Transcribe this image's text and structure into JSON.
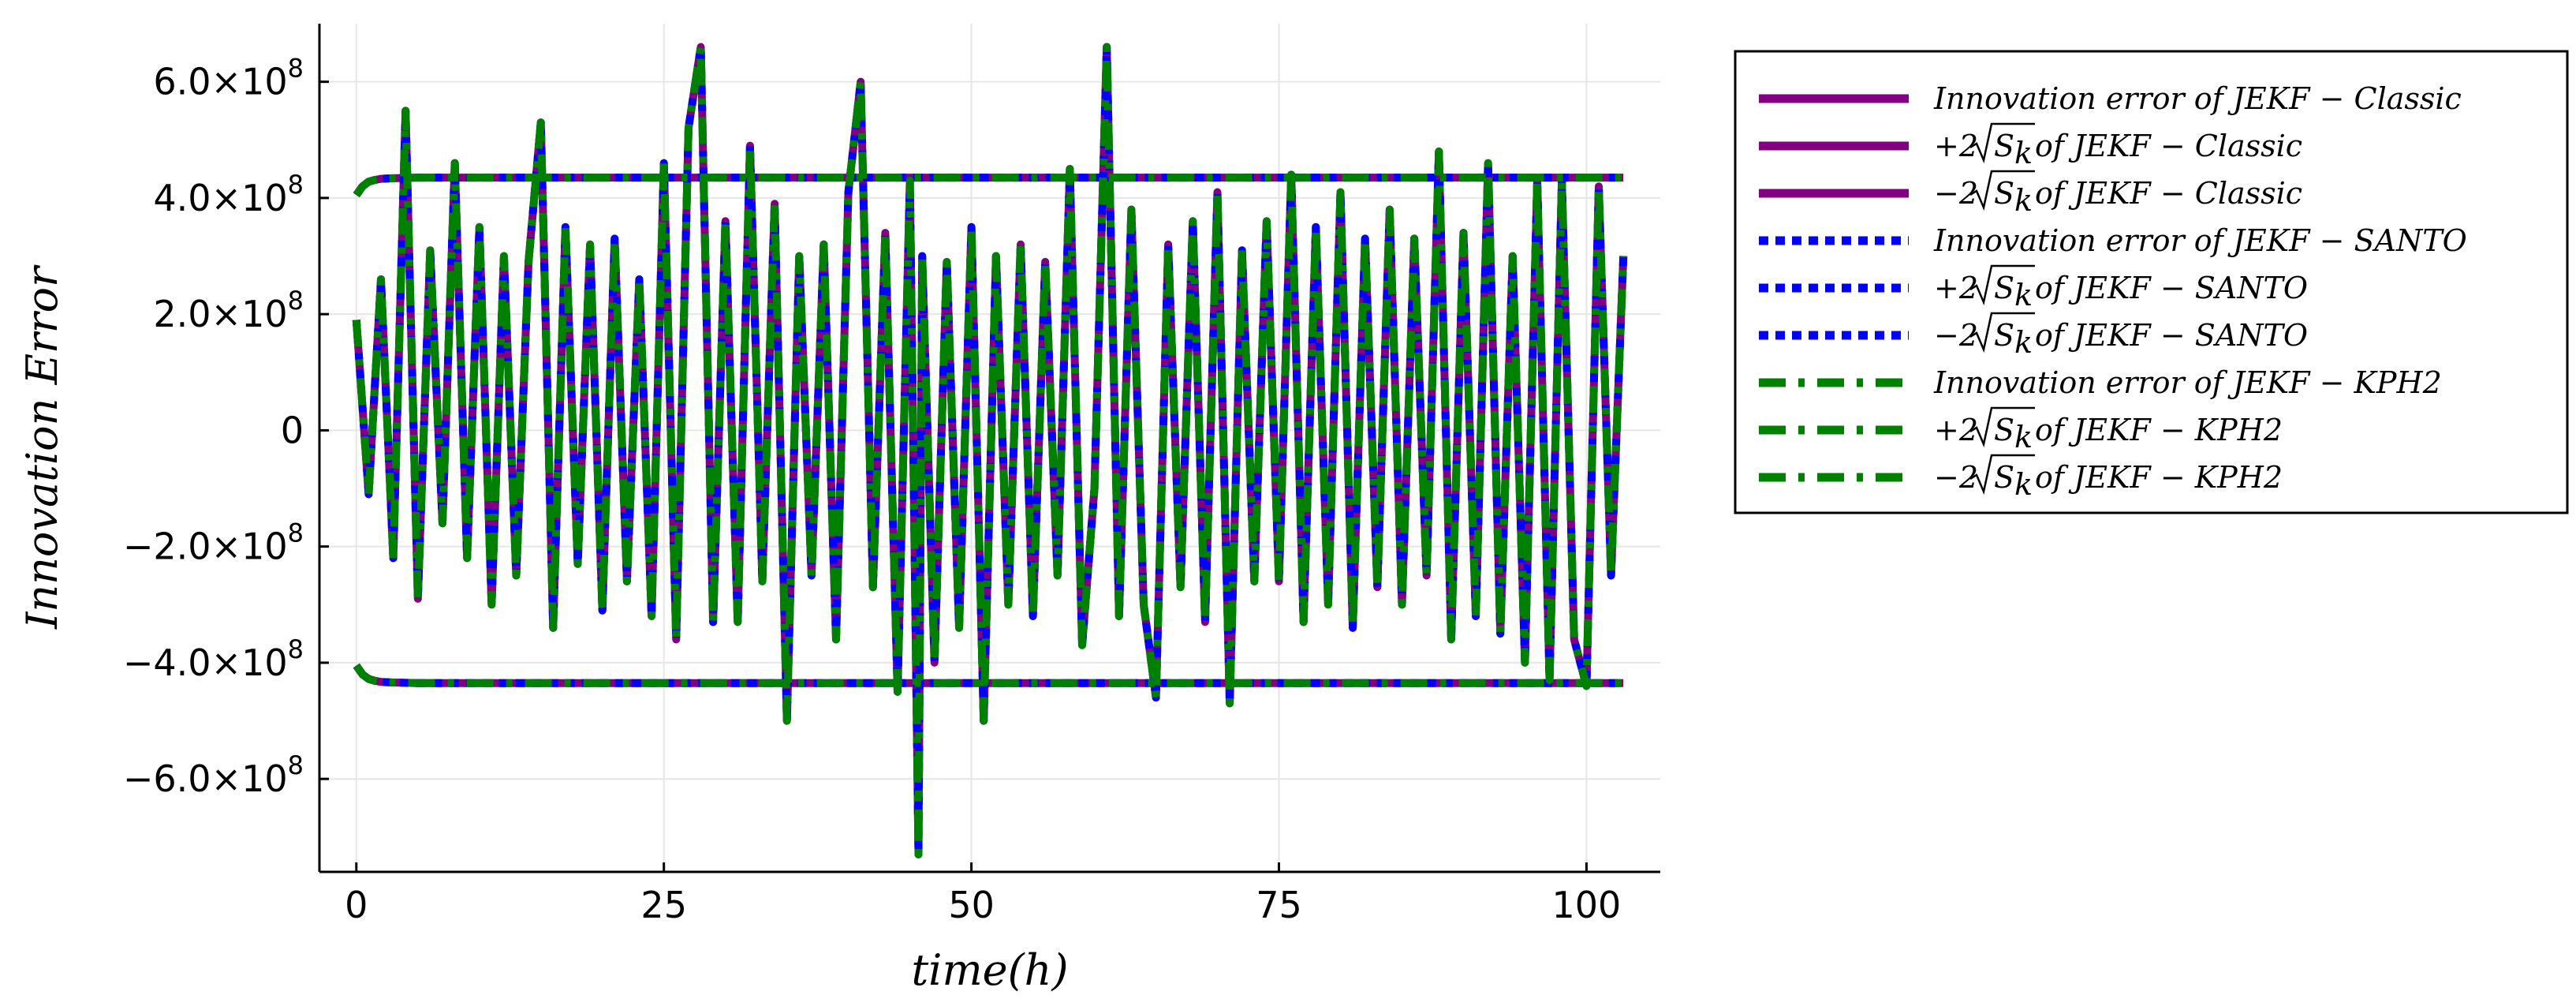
{
  "chart_data": {
    "type": "line",
    "xlabel": "time(h)",
    "ylabel": "Innovation Error",
    "xlim": [
      -3,
      106
    ],
    "ylim": [
      -760000000.0,
      700000000.0
    ],
    "xticks": [
      0,
      25,
      50,
      75,
      100
    ],
    "xtick_labels": [
      "0",
      "25",
      "50",
      "75",
      "100"
    ],
    "yticks": [
      600000000.0,
      400000000.0,
      200000000.0,
      0,
      -200000000.0,
      -400000000.0,
      -600000000.0
    ],
    "ytick_labels": [
      {
        "mantissa": "6.0×10",
        "exp": "8"
      },
      {
        "mantissa": "4.0×10",
        "exp": "8"
      },
      {
        "mantissa": "2.0×10",
        "exp": "8"
      },
      {
        "mantissa": "0",
        "exp": ""
      },
      {
        "mantissa": "−2.0×10",
        "exp": "8"
      },
      {
        "mantissa": "−4.0×10",
        "exp": "8"
      },
      {
        "mantissa": "−6.0×10",
        "exp": "8"
      }
    ],
    "grid": true,
    "legend_position": "outside-right",
    "colors": {
      "classic": "#800080",
      "santo": "#0000ff",
      "kph2": "#008000"
    },
    "series": [
      {
        "name": "Innovation error of JEKF − Classic",
        "color": "#800080",
        "style": "solid",
        "x": [
          0,
          1,
          2,
          3,
          4,
          5,
          6,
          7,
          8,
          9,
          10,
          11,
          12,
          13,
          14,
          15,
          16,
          17,
          18,
          19,
          20,
          21,
          22,
          23,
          24,
          25,
          26,
          27,
          28,
          29,
          30,
          31,
          32,
          33,
          34,
          35,
          36,
          37,
          38,
          39,
          40,
          41,
          42,
          43,
          44,
          45,
          45.7,
          46,
          47,
          48,
          49,
          50,
          51,
          52,
          53,
          54,
          55,
          56,
          57,
          58,
          59,
          60,
          61,
          62,
          63,
          64,
          65,
          66,
          67,
          68,
          69,
          70,
          71,
          72,
          73,
          74,
          75,
          76,
          77,
          78,
          79,
          80,
          81,
          82,
          83,
          84,
          85,
          86,
          87,
          88,
          89,
          90,
          91,
          92,
          93,
          94,
          95,
          96,
          97,
          98,
          99,
          100,
          101,
          102,
          103
        ],
        "y": [
          190000000.0,
          -110000000.0,
          260000000.0,
          -220000000.0,
          550000000.0,
          -290000000.0,
          310000000.0,
          -160000000.0,
          460000000.0,
          -220000000.0,
          350000000.0,
          -300000000.0,
          300000000.0,
          -250000000.0,
          290000000.0,
          530000000.0,
          -340000000.0,
          350000000.0,
          -230000000.0,
          320000000.0,
          -310000000.0,
          330000000.0,
          -260000000.0,
          260000000.0,
          -320000000.0,
          460000000.0,
          -360000000.0,
          520000000.0,
          660000000.0,
          -330000000.0,
          360000000.0,
          -330000000.0,
          490000000.0,
          -260000000.0,
          390000000.0,
          -500000000.0,
          300000000.0,
          -250000000.0,
          320000000.0,
          -360000000.0,
          410000000.0,
          600000000.0,
          -270000000.0,
          340000000.0,
          -450000000.0,
          430000000.0,
          -730000000.0,
          300000000.0,
          -400000000.0,
          290000000.0,
          -340000000.0,
          350000000.0,
          -500000000.0,
          300000000.0,
          -300000000.0,
          320000000.0,
          -320000000.0,
          290000000.0,
          -250000000.0,
          450000000.0,
          -370000000.0,
          -100000000.0,
          660000000.0,
          -320000000.0,
          380000000.0,
          -300000000.0,
          -460000000.0,
          320000000.0,
          -270000000.0,
          360000000.0,
          -330000000.0,
          410000000.0,
          -470000000.0,
          310000000.0,
          -260000000.0,
          360000000.0,
          -260000000.0,
          440000000.0,
          -330000000.0,
          350000000.0,
          -300000000.0,
          410000000.0,
          -340000000.0,
          330000000.0,
          -270000000.0,
          380000000.0,
          -300000000.0,
          330000000.0,
          -250000000.0,
          480000000.0,
          -360000000.0,
          340000000.0,
          -320000000.0,
          460000000.0,
          -350000000.0,
          300000000.0,
          -400000000.0,
          430000000.0,
          -430000000.0,
          430000000.0,
          -360000000.0,
          -440000000.0,
          420000000.0,
          -250000000.0,
          300000000.0
        ]
      },
      {
        "name": "+2√S_k of JEKF − Classic",
        "color": "#800080",
        "style": "solid",
        "x": [
          0,
          0.5,
          1,
          1.5,
          2,
          3,
          5,
          10,
          103
        ],
        "y": [
          405000000.0,
          420000000.0,
          428000000.0,
          431000000.0,
          433000000.0,
          434000000.0,
          435000000.0,
          435000000.0,
          435000000.0
        ]
      },
      {
        "name": "−2√S_k of JEKF − Classic",
        "color": "#800080",
        "style": "solid",
        "x": [
          0,
          0.5,
          1,
          1.5,
          2,
          3,
          5,
          10,
          103
        ],
        "y": [
          -405000000.0,
          -420000000.0,
          -428000000.0,
          -431000000.0,
          -433000000.0,
          -434000000.0,
          -435000000.0,
          -435000000.0,
          -435000000.0
        ]
      },
      {
        "name": "Innovation error of JEKF − SANTO",
        "color": "#0000ff",
        "style": "dotted",
        "x": [
          0,
          1,
          2,
          3,
          4,
          5,
          6,
          7,
          8,
          9,
          10,
          11,
          12,
          13,
          14,
          15,
          16,
          17,
          18,
          19,
          20,
          21,
          22,
          23,
          24,
          25,
          26,
          27,
          28,
          29,
          30,
          31,
          32,
          33,
          34,
          35,
          36,
          37,
          38,
          39,
          40,
          41,
          42,
          43,
          44,
          45,
          45.7,
          46,
          47,
          48,
          49,
          50,
          51,
          52,
          53,
          54,
          55,
          56,
          57,
          58,
          59,
          60,
          61,
          62,
          63,
          64,
          65,
          66,
          67,
          68,
          69,
          70,
          71,
          72,
          73,
          74,
          75,
          76,
          77,
          78,
          79,
          80,
          81,
          82,
          83,
          84,
          85,
          86,
          87,
          88,
          89,
          90,
          91,
          92,
          93,
          94,
          95,
          96,
          97,
          98,
          99,
          100,
          101,
          102,
          103
        ],
        "y": [
          190000000.0,
          -110000000.0,
          260000000.0,
          -220000000.0,
          550000000.0,
          -290000000.0,
          310000000.0,
          -160000000.0,
          460000000.0,
          -220000000.0,
          350000000.0,
          -300000000.0,
          300000000.0,
          -250000000.0,
          290000000.0,
          530000000.0,
          -340000000.0,
          350000000.0,
          -230000000.0,
          320000000.0,
          -310000000.0,
          330000000.0,
          -260000000.0,
          260000000.0,
          -320000000.0,
          460000000.0,
          -360000000.0,
          520000000.0,
          660000000.0,
          -330000000.0,
          360000000.0,
          -330000000.0,
          490000000.0,
          -260000000.0,
          390000000.0,
          -500000000.0,
          300000000.0,
          -250000000.0,
          320000000.0,
          -360000000.0,
          410000000.0,
          600000000.0,
          -270000000.0,
          340000000.0,
          -450000000.0,
          430000000.0,
          -730000000.0,
          300000000.0,
          -400000000.0,
          290000000.0,
          -340000000.0,
          350000000.0,
          -500000000.0,
          300000000.0,
          -300000000.0,
          320000000.0,
          -320000000.0,
          290000000.0,
          -250000000.0,
          450000000.0,
          -370000000.0,
          -100000000.0,
          660000000.0,
          -320000000.0,
          380000000.0,
          -300000000.0,
          -460000000.0,
          320000000.0,
          -270000000.0,
          360000000.0,
          -330000000.0,
          410000000.0,
          -470000000.0,
          310000000.0,
          -260000000.0,
          360000000.0,
          -260000000.0,
          440000000.0,
          -330000000.0,
          350000000.0,
          -300000000.0,
          410000000.0,
          -340000000.0,
          330000000.0,
          -270000000.0,
          380000000.0,
          -300000000.0,
          330000000.0,
          -250000000.0,
          480000000.0,
          -360000000.0,
          340000000.0,
          -320000000.0,
          460000000.0,
          -350000000.0,
          300000000.0,
          -400000000.0,
          430000000.0,
          -430000000.0,
          430000000.0,
          -360000000.0,
          -440000000.0,
          420000000.0,
          -250000000.0,
          300000000.0
        ]
      },
      {
        "name": "+2√S_k of JEKF − SANTO",
        "color": "#0000ff",
        "style": "dotted",
        "x": [
          0,
          0.5,
          1,
          1.5,
          2,
          3,
          5,
          10,
          103
        ],
        "y": [
          405000000.0,
          420000000.0,
          428000000.0,
          431000000.0,
          433000000.0,
          434000000.0,
          435000000.0,
          435000000.0,
          435000000.0
        ]
      },
      {
        "name": "−2√S_k of JEKF − SANTO",
        "color": "#0000ff",
        "style": "dotted",
        "x": [
          0,
          0.5,
          1,
          1.5,
          2,
          3,
          5,
          10,
          103
        ],
        "y": [
          -405000000.0,
          -420000000.0,
          -428000000.0,
          -431000000.0,
          -433000000.0,
          -434000000.0,
          -435000000.0,
          -435000000.0,
          -435000000.0
        ]
      },
      {
        "name": "Innovation error of JEKF − KPH2",
        "color": "#008000",
        "style": "dashdot",
        "x": [
          0,
          1,
          2,
          3,
          4,
          5,
          6,
          7,
          8,
          9,
          10,
          11,
          12,
          13,
          14,
          15,
          16,
          17,
          18,
          19,
          20,
          21,
          22,
          23,
          24,
          25,
          26,
          27,
          28,
          29,
          30,
          31,
          32,
          33,
          34,
          35,
          36,
          37,
          38,
          39,
          40,
          41,
          42,
          43,
          44,
          45,
          45.7,
          46,
          47,
          48,
          49,
          50,
          51,
          52,
          53,
          54,
          55,
          56,
          57,
          58,
          59,
          60,
          61,
          62,
          63,
          64,
          65,
          66,
          67,
          68,
          69,
          70,
          71,
          72,
          73,
          74,
          75,
          76,
          77,
          78,
          79,
          80,
          81,
          82,
          83,
          84,
          85,
          86,
          87,
          88,
          89,
          90,
          91,
          92,
          93,
          94,
          95,
          96,
          97,
          98,
          99,
          100,
          101,
          102,
          103
        ],
        "y": [
          190000000.0,
          -110000000.0,
          260000000.0,
          -220000000.0,
          550000000.0,
          -290000000.0,
          310000000.0,
          -160000000.0,
          460000000.0,
          -220000000.0,
          350000000.0,
          -300000000.0,
          300000000.0,
          -250000000.0,
          290000000.0,
          530000000.0,
          -340000000.0,
          350000000.0,
          -230000000.0,
          320000000.0,
          -310000000.0,
          330000000.0,
          -260000000.0,
          260000000.0,
          -320000000.0,
          460000000.0,
          -360000000.0,
          520000000.0,
          660000000.0,
          -330000000.0,
          360000000.0,
          -330000000.0,
          490000000.0,
          -260000000.0,
          390000000.0,
          -500000000.0,
          300000000.0,
          -250000000.0,
          320000000.0,
          -360000000.0,
          410000000.0,
          600000000.0,
          -270000000.0,
          340000000.0,
          -450000000.0,
          430000000.0,
          -730000000.0,
          300000000.0,
          -400000000.0,
          290000000.0,
          -340000000.0,
          350000000.0,
          -500000000.0,
          300000000.0,
          -300000000.0,
          320000000.0,
          -320000000.0,
          290000000.0,
          -250000000.0,
          450000000.0,
          -370000000.0,
          -100000000.0,
          660000000.0,
          -320000000.0,
          380000000.0,
          -300000000.0,
          -460000000.0,
          320000000.0,
          -270000000.0,
          360000000.0,
          -330000000.0,
          410000000.0,
          -470000000.0,
          310000000.0,
          -260000000.0,
          360000000.0,
          -260000000.0,
          440000000.0,
          -330000000.0,
          350000000.0,
          -300000000.0,
          410000000.0,
          -340000000.0,
          330000000.0,
          -270000000.0,
          380000000.0,
          -300000000.0,
          330000000.0,
          -250000000.0,
          480000000.0,
          -360000000.0,
          340000000.0,
          -320000000.0,
          460000000.0,
          -350000000.0,
          300000000.0,
          -400000000.0,
          430000000.0,
          -430000000.0,
          430000000.0,
          -360000000.0,
          -440000000.0,
          420000000.0,
          -250000000.0,
          300000000.0
        ]
      },
      {
        "name": "+2√S_k of JEKF − KPH2",
        "color": "#008000",
        "style": "dashdot",
        "x": [
          0,
          0.5,
          1,
          1.5,
          2,
          3,
          5,
          10,
          103
        ],
        "y": [
          405000000.0,
          420000000.0,
          428000000.0,
          431000000.0,
          433000000.0,
          434000000.0,
          435000000.0,
          435000000.0,
          435000000.0
        ]
      },
      {
        "name": "−2√S_k of JEKF − KPH2",
        "color": "#008000",
        "style": "dashdot",
        "x": [
          0,
          0.5,
          1,
          1.5,
          2,
          3,
          5,
          10,
          103
        ],
        "y": [
          -405000000.0,
          -420000000.0,
          -428000000.0,
          -431000000.0,
          -433000000.0,
          -434000000.0,
          -435000000.0,
          -435000000.0,
          -435000000.0
        ]
      }
    ],
    "legend": [
      {
        "prefix": "",
        "sqrt": "",
        "text": "Innovation error of JEKF − Classic",
        "color": "#800080",
        "style": "solid"
      },
      {
        "prefix": "+2",
        "sqrt": "S",
        "sub": "k",
        "text": " of JEKF − Classic",
        "color": "#800080",
        "style": "solid"
      },
      {
        "prefix": "−2",
        "sqrt": "S",
        "sub": "k",
        "text": " of JEKF − Classic",
        "color": "#800080",
        "style": "solid"
      },
      {
        "prefix": "",
        "sqrt": "",
        "text": "Innovation error of JEKF − SANTO",
        "color": "#0000ff",
        "style": "dotted"
      },
      {
        "prefix": "+2",
        "sqrt": "S",
        "sub": "k",
        "text": " of JEKF − SANTO",
        "color": "#0000ff",
        "style": "dotted"
      },
      {
        "prefix": "−2",
        "sqrt": "S",
        "sub": "k",
        "text": " of JEKF − SANTO",
        "color": "#0000ff",
        "style": "dotted"
      },
      {
        "prefix": "",
        "sqrt": "",
        "text": "Innovation error of JEKF − KPH2",
        "color": "#008000",
        "style": "dashdot"
      },
      {
        "prefix": "+2",
        "sqrt": "S",
        "sub": "k",
        "text": " of JEKF − KPH2",
        "color": "#008000",
        "style": "dashdot"
      },
      {
        "prefix": "−2",
        "sqrt": "S",
        "sub": "k",
        "text": " of JEKF − KPH2",
        "color": "#008000",
        "style": "dashdot"
      }
    ]
  }
}
